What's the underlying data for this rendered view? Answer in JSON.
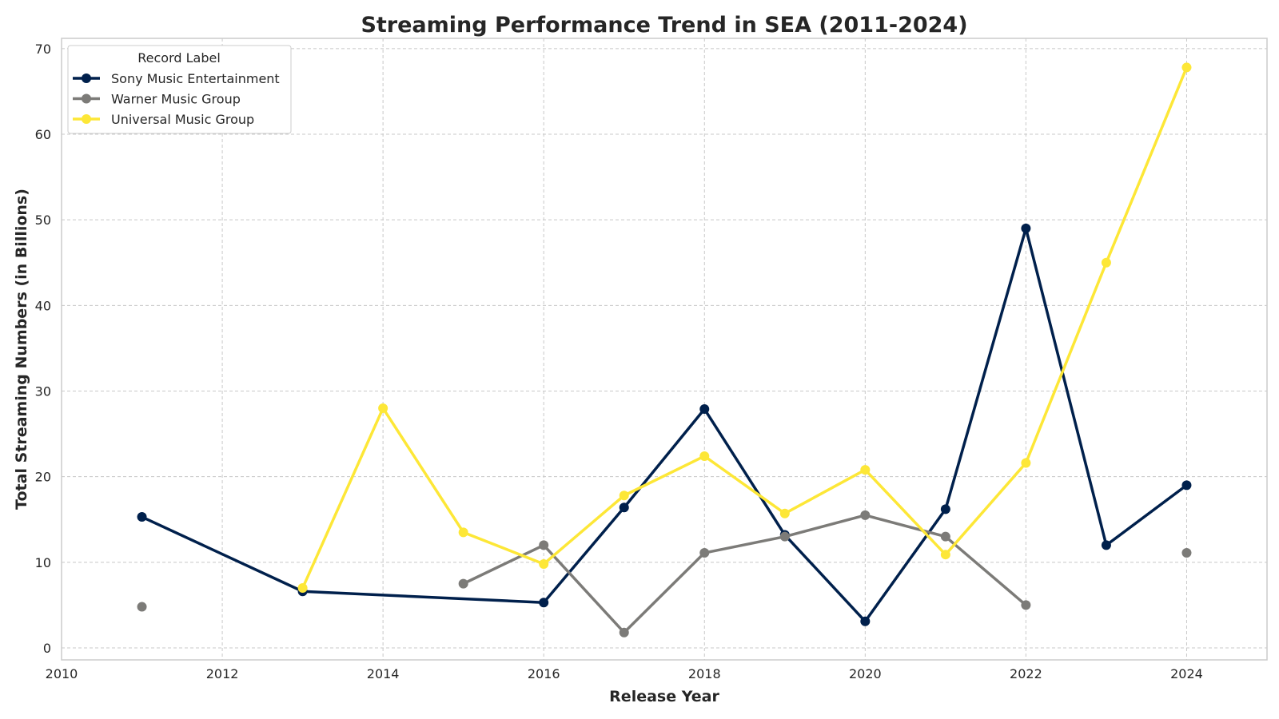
{
  "chart_data": {
    "type": "line",
    "title": "Streaming Performance Trend in SEA (2011-2024)",
    "xlabel": "Release Year",
    "ylabel": "Total Streaming Numbers (in Billions)",
    "xlim": [
      2010,
      2025
    ],
    "ylim": [
      -1.4,
      71.2
    ],
    "xticks": [
      2010,
      2012,
      2014,
      2016,
      2018,
      2020,
      2022,
      2024
    ],
    "yticks": [
      0,
      10,
      20,
      30,
      40,
      50,
      60,
      70
    ],
    "grid": true,
    "legend": {
      "title": "Record Label",
      "placement": "top-left"
    },
    "series": [
      {
        "name": "Sony Music Entertainment",
        "color": "#00204c",
        "points": [
          [
            2011,
            15.3
          ],
          [
            2013,
            6.6
          ],
          [
            2016,
            5.3
          ],
          [
            2017,
            16.4
          ],
          [
            2018,
            27.9
          ],
          [
            2019,
            13.2
          ],
          [
            2020,
            3.1
          ],
          [
            2021,
            16.2
          ],
          [
            2022,
            49.0
          ],
          [
            2023,
            12.0
          ],
          [
            2024,
            19.0
          ]
        ]
      },
      {
        "name": "Warner Music Group",
        "color": "#7c7b78",
        "points": [
          [
            2011,
            4.8
          ],
          [
            2015,
            7.5
          ],
          [
            2016,
            12.0
          ],
          [
            2017,
            1.8
          ],
          [
            2018,
            11.1
          ],
          [
            2019,
            13.0
          ],
          [
            2020,
            15.5
          ],
          [
            2021,
            13.0
          ],
          [
            2022,
            5.0
          ],
          [
            2024,
            11.1
          ]
        ],
        "segments": [
          [
            2015,
            2022
          ]
        ]
      },
      {
        "name": "Universal Music Group",
        "color": "#fde737",
        "points": [
          [
            2013,
            7.0
          ],
          [
            2014,
            28.0
          ],
          [
            2015,
            13.5
          ],
          [
            2016,
            9.8
          ],
          [
            2017,
            17.8
          ],
          [
            2018,
            22.4
          ],
          [
            2019,
            15.7
          ],
          [
            2020,
            20.8
          ],
          [
            2021,
            10.9
          ],
          [
            2022,
            21.6
          ],
          [
            2023,
            45.0
          ],
          [
            2024,
            67.8
          ]
        ]
      }
    ]
  }
}
